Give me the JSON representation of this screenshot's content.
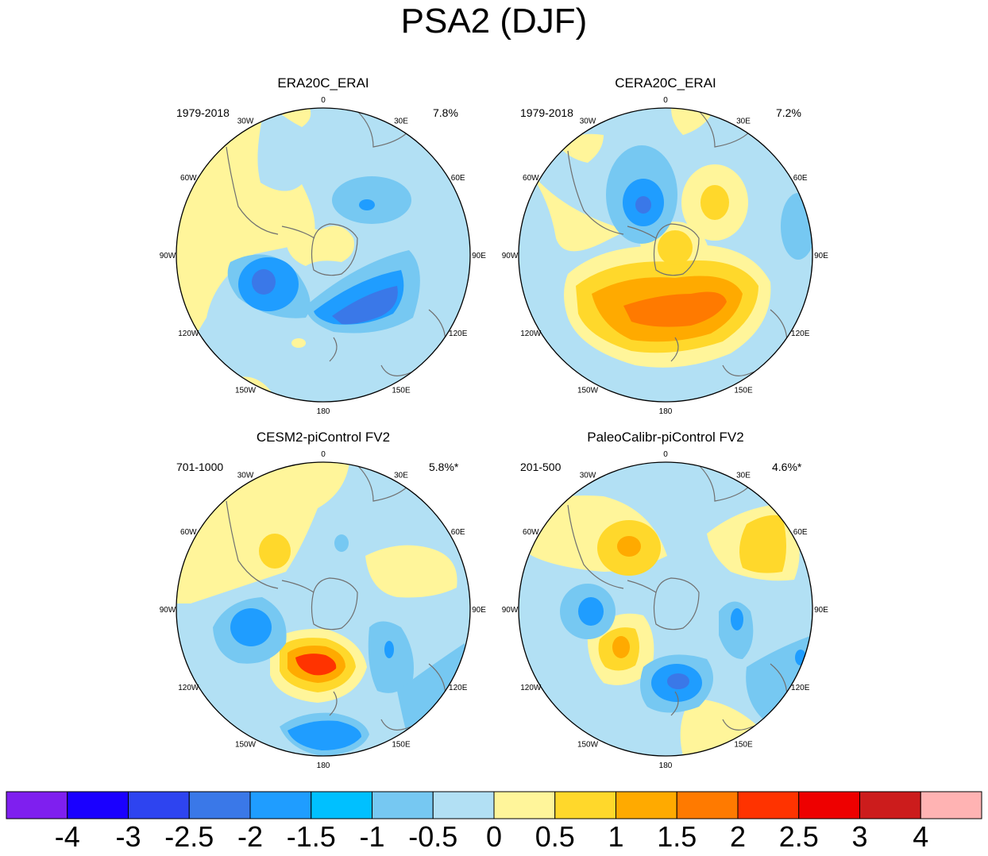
{
  "title": "PSA2 (DJF)",
  "lon_labels": [
    "0",
    "30E",
    "60E",
    "90E",
    "120E",
    "150E",
    "180",
    "150W",
    "120W",
    "90W",
    "60W",
    "30W"
  ],
  "panels": [
    {
      "title": "ERA20C_ERAI",
      "period": "1979-2018",
      "variance": "7.8%"
    },
    {
      "title": "CERA20C_ERAI",
      "period": "1979-2018",
      "variance": "7.2%"
    },
    {
      "title": "CESM2-piControl FV2",
      "period": "701-1000",
      "variance": "5.8%*"
    },
    {
      "title": "PaleoCalibr-piControl FV2",
      "period": "201-500",
      "variance": "4.6%*"
    }
  ],
  "colorbar": {
    "colors": [
      "#7f1fef",
      "#1a00ff",
      "#2e44f0",
      "#3a78e8",
      "#1f9dff",
      "#00c0ff",
      "#76c8f2",
      "#b2e0f4",
      "#fff59a",
      "#ffd82b",
      "#ffaa00",
      "#ff7a00",
      "#ff3300",
      "#ee0000",
      "#cc1c1c",
      "#ffb3b3"
    ],
    "labels": [
      "-4",
      "-3",
      "-2.5",
      "-2",
      "-1.5",
      "-1",
      "-0.5",
      "0",
      "0.5",
      "1",
      "1.5",
      "2",
      "2.5",
      "3",
      "4"
    ]
  }
}
